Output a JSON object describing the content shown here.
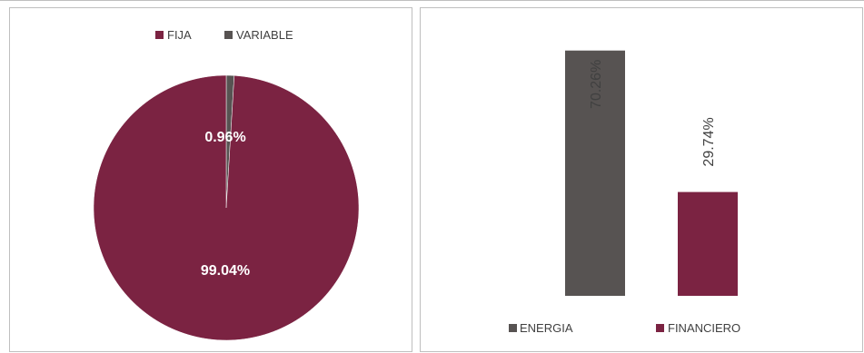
{
  "chart_data": [
    {
      "type": "pie",
      "title": "",
      "legend_position": "top",
      "categories": [
        "FIJA",
        "VARIABLE"
      ],
      "values": [
        99.04,
        0.96
      ],
      "labels": [
        "99.04%",
        "0.96%"
      ],
      "colors": [
        "#7b2342",
        "#575352"
      ]
    },
    {
      "type": "bar",
      "title": "",
      "legend_position": "bottom",
      "categories": [
        "ENERGIA",
        "FINANCIERO"
      ],
      "values": [
        70.26,
        29.74
      ],
      "labels": [
        "70.26%",
        "29.74%"
      ],
      "colors": [
        "#575352",
        "#7b2342"
      ],
      "ylim": [
        0,
        72
      ]
    }
  ]
}
